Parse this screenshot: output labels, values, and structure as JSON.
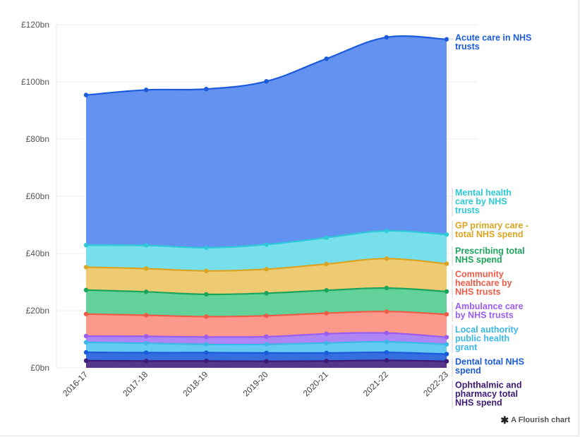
{
  "chart_data": {
    "type": "area",
    "stacked": true,
    "categories": [
      "2016-17",
      "2017-18",
      "2018-19",
      "2019-20",
      "2020-21",
      "2021-22",
      "2022-23"
    ],
    "ylim": [
      0,
      120
    ],
    "yticks": [
      0,
      20,
      40,
      60,
      80,
      100,
      120
    ],
    "ytick_labels": [
      "£0bn",
      "£20bn",
      "£40bn",
      "£60bn",
      "£80bn",
      "£100bn",
      "£120bn"
    ],
    "grid": true,
    "series": [
      {
        "name": "Ophthalmic and pharmacy total NHS spend",
        "color": "#3d1a78",
        "label_color": "#3d1a78",
        "values": [
          2.5,
          2.4,
          2.4,
          2.3,
          2.4,
          2.6,
          2.3
        ]
      },
      {
        "name": "Dental total NHS spend",
        "color": "#1a5adb",
        "label_color": "#1a5adb",
        "values": [
          2.9,
          2.9,
          2.9,
          2.9,
          2.8,
          2.8,
          2.5
        ]
      },
      {
        "name": "Local authority public health grant",
        "color": "#4fc3f0",
        "label_color": "#3ab8e8",
        "values": [
          3.5,
          3.3,
          2.9,
          3.0,
          3.5,
          3.7,
          3.4
        ]
      },
      {
        "name": "Ambulance care by NHS trusts",
        "color": "#a274f2",
        "label_color": "#9b5cf0",
        "values": [
          2.2,
          2.4,
          2.6,
          2.7,
          3.2,
          3.1,
          2.5
        ]
      },
      {
        "name": "Community healthcare by NHS trusts",
        "color": "#fb8b7c",
        "label_color": "#ef5b47",
        "values": [
          7.7,
          7.4,
          7.1,
          7.3,
          7.2,
          7.5,
          8.0
        ]
      },
      {
        "name": "Prescribing total NHS spend",
        "color": "#4ccb8c",
        "label_color": "#1aa55b",
        "values": [
          8.4,
          8.2,
          7.8,
          7.9,
          8.0,
          8.2,
          8.0
        ]
      },
      {
        "name": "GP primary care - total NHS spend",
        "color": "#ecc35e",
        "label_color": "#dba420",
        "values": [
          8.0,
          8.1,
          8.2,
          8.4,
          9.2,
          10.3,
          9.7
        ]
      },
      {
        "name": "Mental health care by NHS trusts",
        "color": "#63dbe8",
        "label_color": "#2ccad6",
        "values": [
          7.7,
          8.1,
          8.1,
          8.6,
          9.2,
          9.7,
          10.2
        ]
      },
      {
        "name": "Acute care in NHS trusts",
        "color": "#4e83ef",
        "label_color": "#1a5adb",
        "values": [
          52.5,
          54.4,
          55.5,
          57.1,
          62.6,
          67.7,
          68.3
        ]
      }
    ],
    "label_lines": {
      "Acute care in NHS trusts": [
        "Acute care in NHS",
        "trusts"
      ],
      "Mental health care by NHS trusts": [
        "Mental health",
        "care by NHS",
        "trusts"
      ],
      "GP primary care - total NHS spend": [
        "GP primary care -",
        "total NHS spend"
      ],
      "Prescribing total NHS spend": [
        "Prescribing total",
        "NHS spend"
      ],
      "Community healthcare by NHS trusts": [
        "Community",
        "healthcare by",
        "NHS trusts"
      ],
      "Ambulance care by NHS trusts": [
        "Ambulance care",
        "by NHS trusts"
      ],
      "Local authority public health grant": [
        "Local authority",
        "public health",
        "grant"
      ],
      "Dental total NHS spend": [
        "Dental total NHS",
        "spend"
      ],
      "Ophthalmic and pharmacy total NHS spend": [
        "Ophthalmic and",
        "pharmacy total",
        "NHS spend"
      ]
    }
  },
  "credit": {
    "text": "A Flourish chart",
    "icon": "flourish-star-icon"
  }
}
